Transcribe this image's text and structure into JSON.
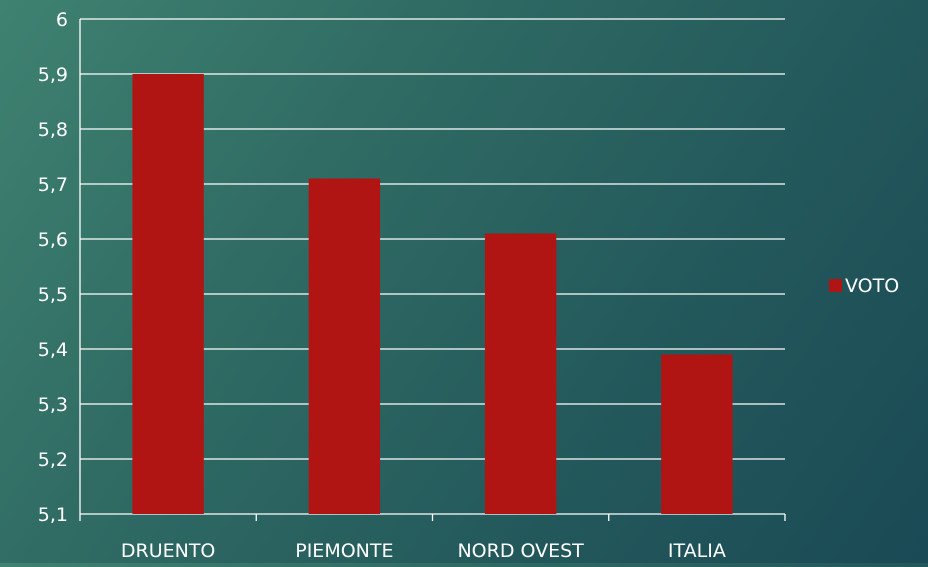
{
  "chart_data": {
    "type": "bar",
    "categories": [
      "DRUENTO",
      "PIEMONTE",
      "NORD OVEST",
      "ITALIA"
    ],
    "series": [
      {
        "name": "VOTO",
        "values": [
          5.9,
          5.71,
          5.61,
          5.39
        ]
      }
    ],
    "ylim": [
      5.1,
      6
    ],
    "yticks": [
      "5,1",
      "5,2",
      "5,3",
      "5,4",
      "5,5",
      "5,6",
      "5,7",
      "5,8",
      "5,9",
      "6"
    ],
    "grid": true,
    "legend": "right",
    "colors": {
      "bar": "#b01513",
      "grid": "#ffffff",
      "text": "#ffffff"
    }
  }
}
